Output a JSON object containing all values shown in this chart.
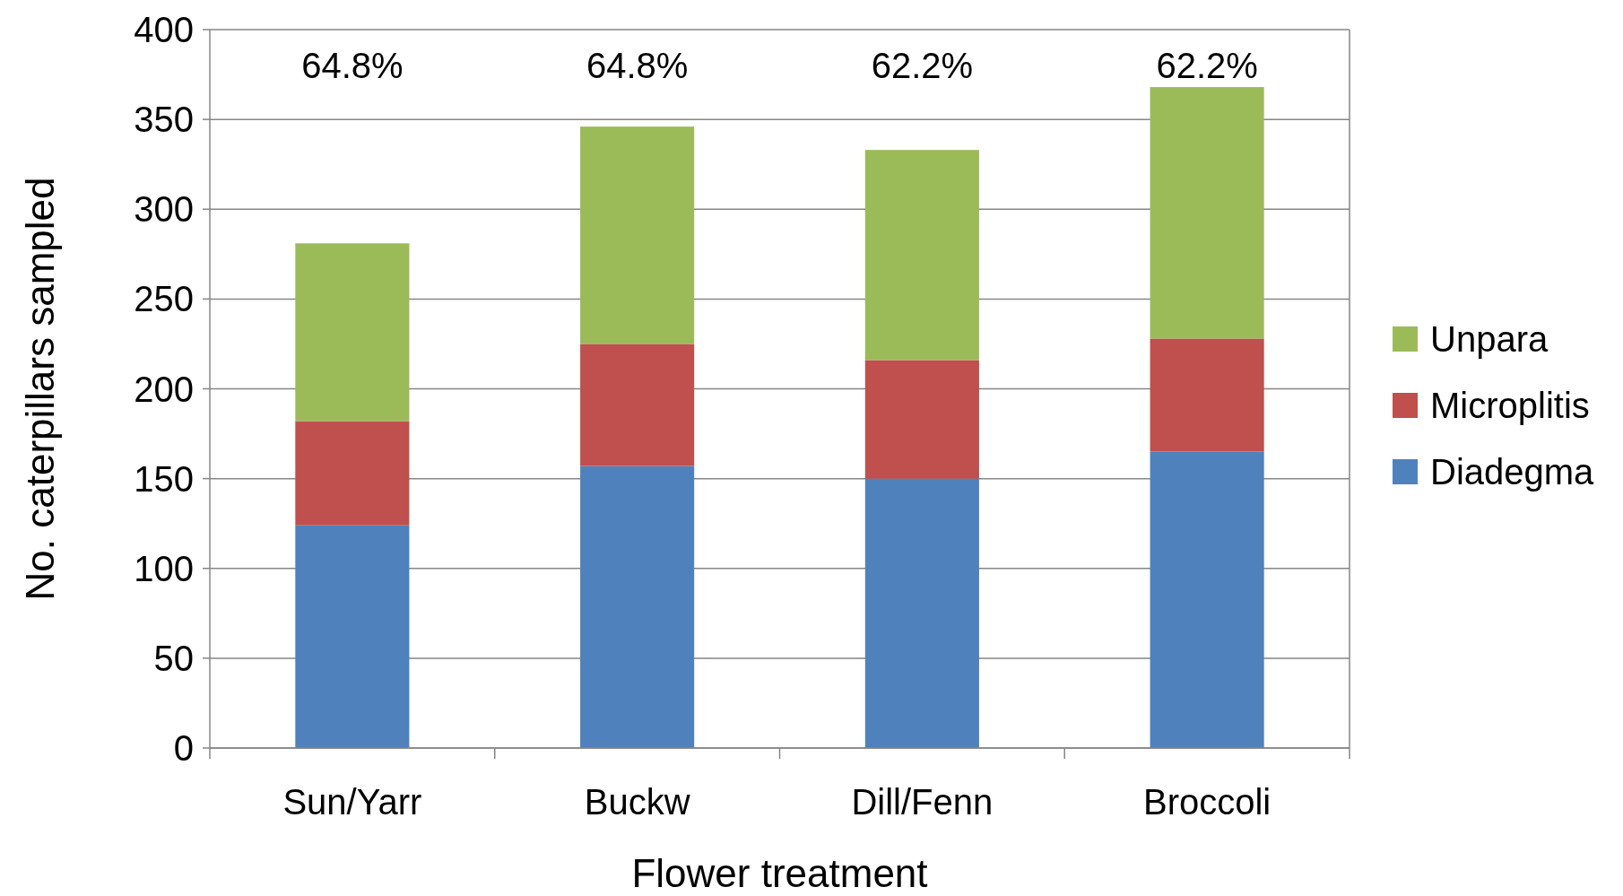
{
  "chart_data": {
    "type": "bar",
    "stacked": true,
    "xlabel": "Flower treatment",
    "ylabel": "No. caterpillars sampled",
    "categories": [
      "Sun/Yarr",
      "Buckw",
      "Dill/Fenn",
      "Broccoli"
    ],
    "series": [
      {
        "name": "Diadegma",
        "color": "#4f81bd",
        "values": [
          124,
          157,
          150,
          165
        ]
      },
      {
        "name": "Microplitis",
        "color": "#c0504d",
        "values": [
          58,
          68,
          66,
          63
        ]
      },
      {
        "name": "Unpara",
        "color": "#9bbb59",
        "values": [
          99,
          121,
          117,
          140
        ]
      }
    ],
    "ylim": [
      0,
      400
    ],
    "yticks": [
      0,
      50,
      100,
      150,
      200,
      250,
      300,
      350,
      400
    ],
    "grid": "y",
    "legend": "right",
    "annotations": [
      "64.8%",
      "64.8%",
      "62.2%",
      "62.2%"
    ]
  }
}
